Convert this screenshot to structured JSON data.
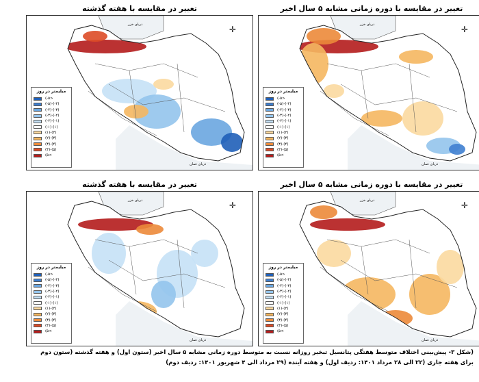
{
  "panels": [
    {
      "title": "تغییر در مقایسه با هفته گذشته"
    },
    {
      "title": "تغییر در مقایسه با دوره زمانی مشابه ۵ سال اخیر"
    },
    {
      "title": "تغییر در مقایسه با هفته گذشته"
    },
    {
      "title": "تغییر در مقایسه با دوره زمانی مشابه ۵ سال اخیر"
    }
  ],
  "legend": {
    "title": "میلیمتر در روز",
    "items": [
      {
        "label": "(-۵>",
        "color": "#1f5fb8"
      },
      {
        "label": "(-۵)-(-۴)",
        "color": "#3f80d0"
      },
      {
        "label": "(-۴)-(-۳)",
        "color": "#6aa6e0"
      },
      {
        "label": "(-۳)-(-۲)",
        "color": "#93c4ec"
      },
      {
        "label": "(-۲)-(-۱)",
        "color": "#c5e1f6"
      },
      {
        "label": "(-۱)-(۱)",
        "color": "#ffffff"
      },
      {
        "label": "(۱)-(۲)",
        "color": "#fbd9a0"
      },
      {
        "label": "(۲)-(۳)",
        "color": "#f5b760"
      },
      {
        "label": "(۳)-(۴)",
        "color": "#ec8a3a"
      },
      {
        "label": "(۴)-(۵)",
        "color": "#dd4b26"
      },
      {
        "label": "(۵<",
        "color": "#b41c1c"
      }
    ]
  },
  "map_labels": {
    "caspian": "دریای خزر",
    "oman": "دریای عمان",
    "caspian_short": "خزر",
    "gulf": "خلیج فارس"
  },
  "caption": {
    "line1": "(شکل ۳- پیش‌بینی اختلاف متوسط هفتگی پتانسیل تبخیر روزانه نسبت به متوسط دوره زمانی مشابه ۵ سال اخیر (ستون اول) و هفته گذشته (ستون دوم",
    "line2": "برای هفته جاری (۲۲ الی ۲۸ مرداد ۱۴۰۱: ردیف اول) و هفته آینده (۲۹ مرداد الی ۴ شهریور ۱۴۰۱: ردیف دوم)"
  }
}
